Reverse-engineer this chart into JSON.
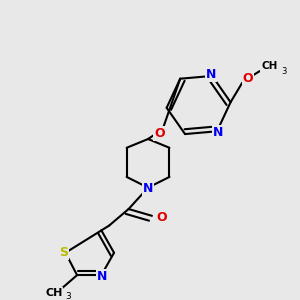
{
  "bg_color": "#e8e8e8",
  "bond_color": "#000000",
  "bond_lw": 1.5,
  "atom_colors": {
    "N": "#0000ee",
    "O": "#dd0000",
    "S": "#bbbb00",
    "C": "#000000"
  },
  "figsize": [
    3.0,
    3.0
  ],
  "dpi": 100
}
